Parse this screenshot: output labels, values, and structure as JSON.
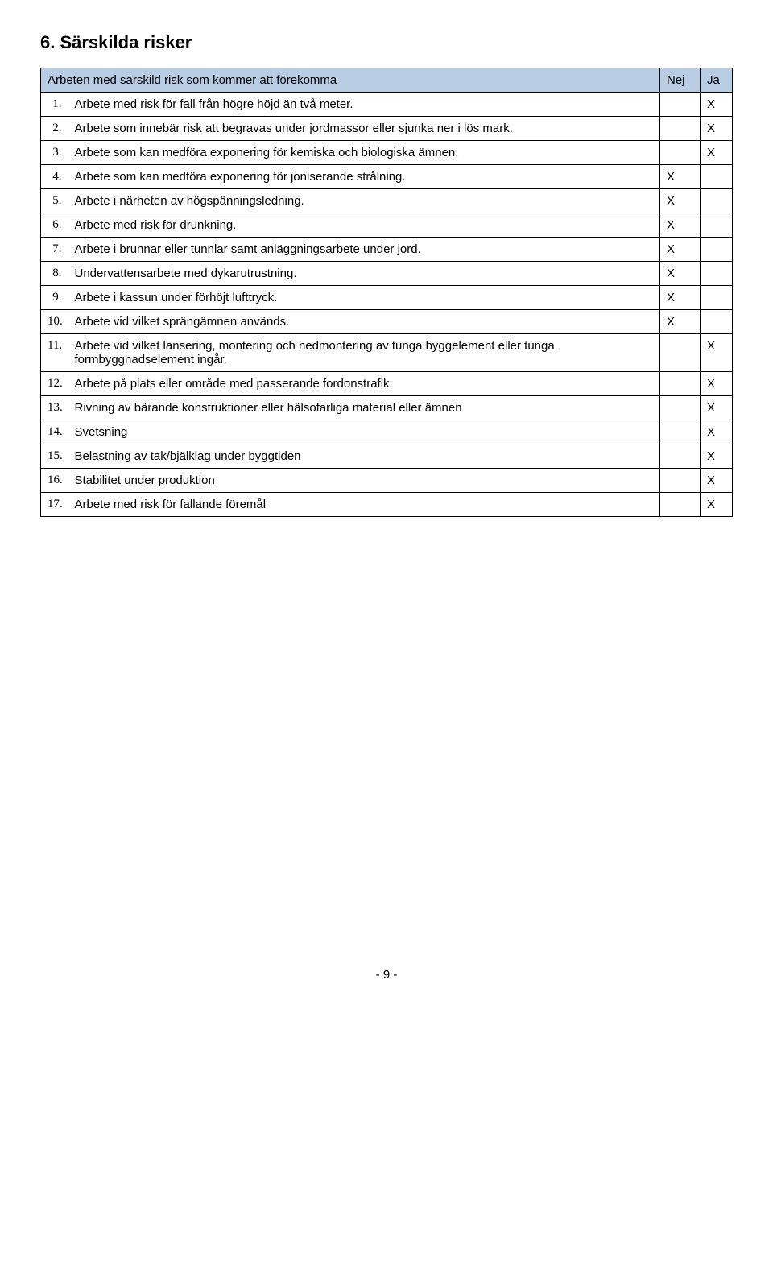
{
  "heading": "6.  Särskilda risker",
  "header": {
    "col1": "Arbeten med särskild risk som kommer att förekomma",
    "col2": "Nej",
    "col3": "Ja"
  },
  "rows": [
    {
      "n": "1.",
      "serif": true,
      "text": "Arbete med risk för fall från högre höjd än två meter.",
      "nej": "",
      "ja": "X"
    },
    {
      "n": "2.",
      "serif": true,
      "text": "Arbete som innebär risk att begravas under jordmassor eller sjunka ner i lös mark.",
      "nej": "",
      "ja": "X"
    },
    {
      "n": "3.",
      "serif": true,
      "text": "Arbete som kan medföra exponering för kemiska och biologiska ämnen.",
      "nej": "",
      "ja": "X"
    },
    {
      "n": "4.",
      "serif": true,
      "text": "Arbete som kan medföra exponering för joniserande strålning.",
      "nej": "X",
      "ja": ""
    },
    {
      "n": "5.",
      "serif": true,
      "text": "Arbete i närheten av högspänningsledning.",
      "nej": "X",
      "ja": ""
    },
    {
      "n": "6.",
      "serif": true,
      "text": "Arbete med risk för drunkning.",
      "nej": "X",
      "ja": ""
    },
    {
      "n": "7.",
      "serif": true,
      "text": "Arbete i brunnar eller tunnlar samt anläggningsarbete under jord.",
      "nej": "X",
      "ja": ""
    },
    {
      "n": "8.",
      "serif": true,
      "text": "Undervattensarbete med dykarutrustning.",
      "nej": "X",
      "ja": ""
    },
    {
      "n": "9.",
      "serif": true,
      "text": "Arbete i kassun under förhöjt lufttryck.",
      "nej": "X",
      "ja": ""
    },
    {
      "n": "10.",
      "serif": true,
      "text": "Arbete vid vilket sprängämnen används.",
      "nej": "X",
      "ja": ""
    },
    {
      "n": "11.",
      "serif": true,
      "text": "Arbete vid vilket lansering, montering och nedmontering av tunga byggelement eller tunga formbyggnadselement ingår.",
      "nej": "",
      "ja": "X"
    },
    {
      "n": "12.",
      "serif": true,
      "text": "Arbete på plats eller område med passerande fordonstrafik.",
      "nej": "",
      "ja": "X"
    },
    {
      "n": "13.",
      "serif": true,
      "text": "Rivning av bärande konstruktioner eller hälsofarliga material eller ämnen",
      "nej": "",
      "ja": "X"
    },
    {
      "n": "14.",
      "serif": true,
      "text": "Svetsning",
      "nej": "",
      "ja": "X"
    },
    {
      "n": "15.",
      "serif": true,
      "text": "Belastning av tak/bjälklag under byggtiden",
      "nej": "",
      "ja": "X"
    },
    {
      "n": "16.",
      "serif": true,
      "text": "Stabilitet under produktion",
      "nej": "",
      "ja": "X"
    },
    {
      "n": "17.",
      "serif": true,
      "text": "Arbete med risk för fallande föremål",
      "nej": "",
      "ja": "X"
    }
  ],
  "footer": "- 9 -"
}
